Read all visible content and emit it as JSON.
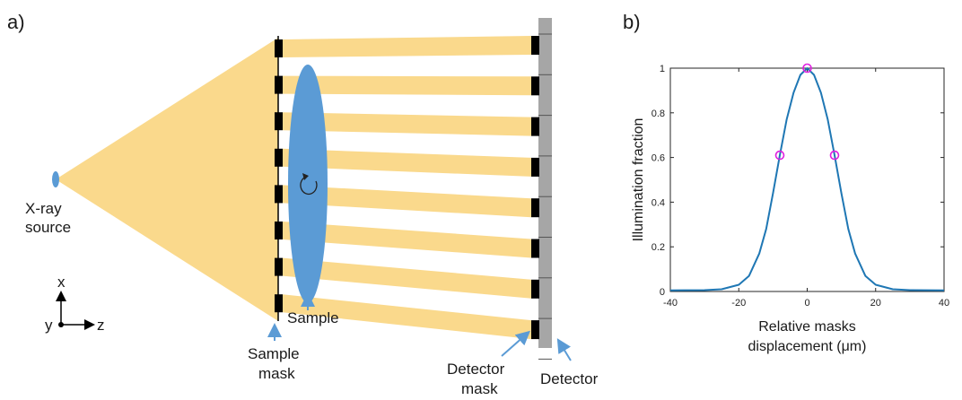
{
  "panel_a": {
    "label": "a)",
    "source_label": [
      "X-ray",
      "source"
    ],
    "axes_label": {
      "x": "x",
      "y": "y",
      "z": "z"
    },
    "sample_label": "Sample",
    "sample_mask_label": [
      "Sample",
      "mask"
    ],
    "detector_mask_label": [
      "Detector",
      "mask"
    ],
    "detector_label": "Detector",
    "colors": {
      "beam": "#fad98c",
      "sample": "#5b9bd5",
      "mask": "#000000",
      "detector": "#a6a6a6",
      "arrow": "#5b9bd5"
    }
  },
  "panel_b": {
    "label": "b)"
  },
  "chart_data": {
    "type": "line",
    "xlabel": [
      "Relative masks",
      "displacement (μm)"
    ],
    "ylabel": "Illumination fraction",
    "xlim": [
      -40,
      40
    ],
    "ylim": [
      0,
      1
    ],
    "xticks": [
      "-40",
      "-20",
      "0",
      "20",
      "40"
    ],
    "yticks": [
      "0",
      "0.2",
      "0.4",
      "0.6",
      "0.8",
      "1"
    ],
    "grid": false,
    "series": [
      {
        "style": "line",
        "color": "#1f77b4",
        "x": [
          -40,
          -30,
          -25,
          -20,
          -17,
          -14,
          -12,
          -10,
          -8,
          -6,
          -4,
          -2,
          0,
          2,
          4,
          6,
          8,
          10,
          12,
          14,
          17,
          20,
          25,
          30,
          40
        ],
        "y": [
          0.005,
          0.006,
          0.01,
          0.03,
          0.07,
          0.17,
          0.28,
          0.44,
          0.61,
          0.77,
          0.89,
          0.97,
          1.0,
          0.97,
          0.89,
          0.77,
          0.61,
          0.44,
          0.28,
          0.17,
          0.07,
          0.03,
          0.01,
          0.006,
          0.005
        ]
      },
      {
        "style": "markers",
        "color": "#e020e0",
        "x": [
          -8,
          0,
          8
        ],
        "y": [
          0.61,
          1.0,
          0.61
        ]
      }
    ]
  }
}
